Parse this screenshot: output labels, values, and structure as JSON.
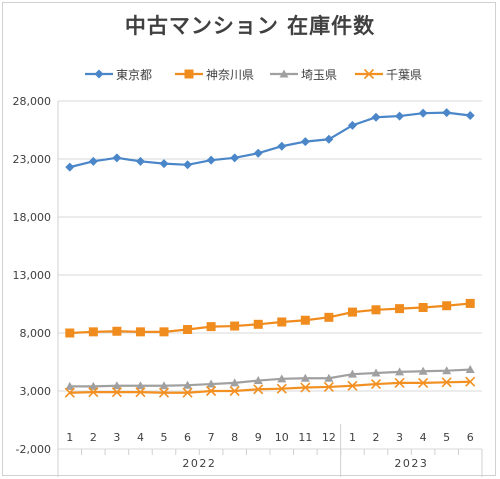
{
  "title": "中古マンション 在庫件数",
  "chart_data": {
    "type": "line",
    "title": "中古マンション 在庫件数",
    "xlabel": "",
    "ylabel": "",
    "ylim": [
      -2000,
      28000
    ],
    "y_ticks": [
      28000,
      23000,
      18000,
      13000,
      8000,
      3000,
      -2000
    ],
    "y_tick_labels": [
      "28,000",
      "23,000",
      "18,000",
      "13,000",
      "8,000",
      "3,000",
      "-2,000"
    ],
    "grid": true,
    "legend_position": "top",
    "categories": [
      "1",
      "2",
      "3",
      "4",
      "5",
      "6",
      "7",
      "8",
      "9",
      "10",
      "11",
      "12",
      "1",
      "2",
      "3",
      "4",
      "5",
      "6"
    ],
    "years": [
      {
        "label": "2022",
        "count": 12
      },
      {
        "label": "2023",
        "count": 6
      }
    ],
    "series": [
      {
        "name": "東京都",
        "color": "#4a86c8",
        "marker": "diamond",
        "values": [
          22300,
          22800,
          23100,
          22800,
          22600,
          22500,
          22900,
          23100,
          23500,
          24100,
          24500,
          24700,
          25900,
          26600,
          26700,
          26950,
          27000,
          26750
        ]
      },
      {
        "name": "神奈川県",
        "color": "#f08c1e",
        "marker": "square",
        "values": [
          8000,
          8100,
          8150,
          8100,
          8100,
          8300,
          8550,
          8600,
          8750,
          8950,
          9100,
          9350,
          9800,
          10000,
          10100,
          10200,
          10350,
          10550
        ]
      },
      {
        "name": "埼玉県",
        "color": "#a0a0a0",
        "marker": "triangle",
        "values": [
          3400,
          3400,
          3450,
          3450,
          3450,
          3500,
          3600,
          3700,
          3900,
          4050,
          4100,
          4100,
          4450,
          4550,
          4650,
          4700,
          4750,
          4850
        ]
      },
      {
        "name": "千葉県",
        "color": "#f29022",
        "marker": "x",
        "values": [
          2850,
          2900,
          2900,
          2900,
          2850,
          2850,
          3000,
          3000,
          3150,
          3200,
          3300,
          3350,
          3450,
          3600,
          3700,
          3700,
          3750,
          3800
        ]
      }
    ]
  }
}
